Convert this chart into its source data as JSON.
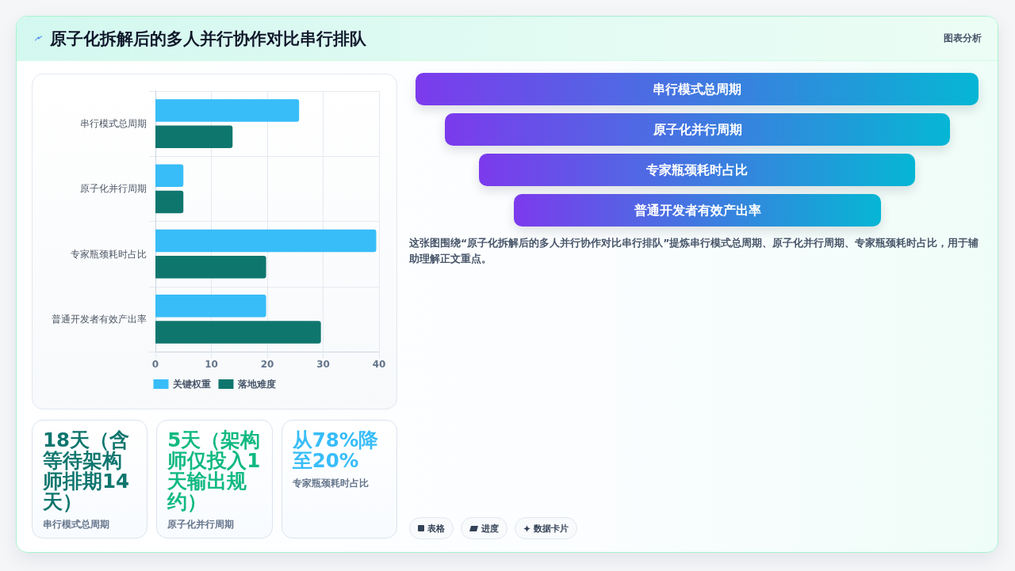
{
  "chart_data": [
    {
      "type": "bar",
      "title": "原子化拆解后的多人并行协作对比串行排队",
      "annotations": [
        "图表分析"
      ],
      "orientation": "horizontal",
      "categories": [
        "串行模式总周期",
        "原子化并行周期",
        "专家瓶颈耗时占比",
        "普通开发者有效产出率"
      ],
      "series": [
        {
          "name": "关键权重",
          "color": "#38bdf8",
          "values": [
            25.7,
            5,
            39.5,
            19.8
          ]
        },
        {
          "name": "落地难度",
          "color": "#0f766e",
          "values": [
            13.8,
            5,
            19.8,
            29.6
          ]
        }
      ],
      "xlim": [
        0,
        40
      ],
      "xticks": [
        0,
        10,
        20,
        30,
        40
      ],
      "grid": true,
      "legend": "bottom"
    },
    {
      "type": "other",
      "categories": [
        "串行模式总周期",
        "原子化并行周期",
        "专家瓶颈耗时占比",
        "普通开发者有效产出率"
      ],
      "annotations": [
        "这张图围绕“原子化拆解后的多人并行协作对比串行排队”提炼串行模式总周期、原子化并行周期、专家瓶颈耗时占比，用于辅助理解正文重点。",
        "表格",
        "进度",
        "数据卡片"
      ]
    },
    {
      "type": "other",
      "annotations": [
        "18天（含等待架构师排期14天）",
        "串行模式总周期",
        "5天（架构师仅投入1天输出规约）",
        "原子化并行周期",
        "从78%降至20%",
        "专家瓶颈耗时占比"
      ],
      "colors": [
        "#0f766e",
        "#10b981",
        "#38bdf8"
      ]
    }
  ]
}
